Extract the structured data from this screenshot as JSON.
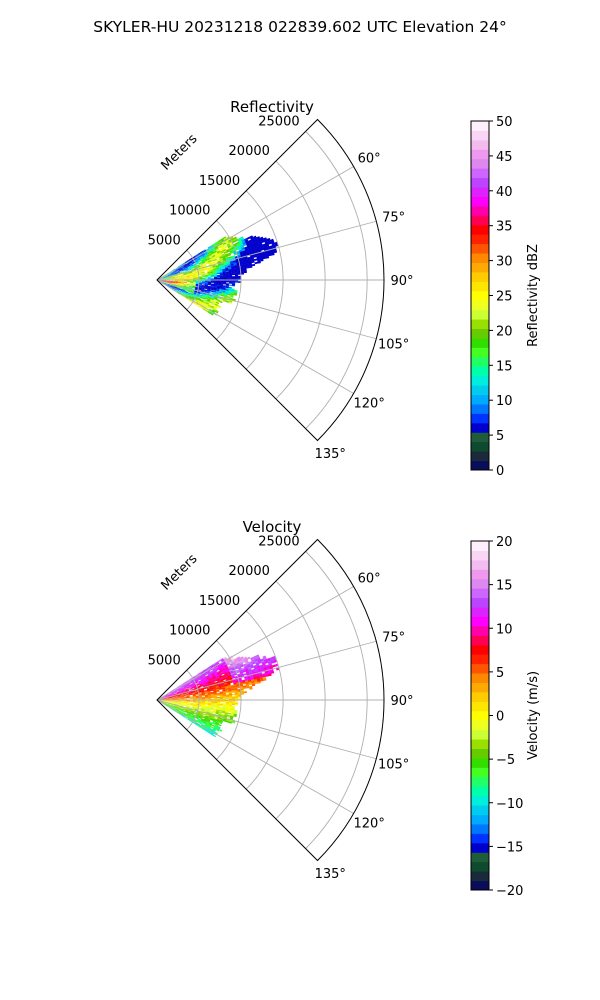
{
  "figure": {
    "suptitle": "SKYLER-HU  20231218  022839.602 UTC Elevation 24°"
  },
  "chart_data": [
    {
      "type": "polar",
      "title": "Reflectivity",
      "radial_label": "Meters",
      "radial_ticks": [
        5000,
        10000,
        15000,
        20000,
        25000
      ],
      "radial_tick_labels": [
        "5000",
        "10000",
        "15000",
        "20000",
        "25000"
      ],
      "r_max": 27000,
      "theta_range_deg": [
        45,
        135
      ],
      "theta_ticks_deg": [
        60,
        75,
        90,
        105,
        120,
        135
      ],
      "theta_tick_labels": [
        "60°",
        "75°",
        "90°",
        "105°",
        "120°",
        "135°"
      ],
      "grid": true,
      "colorbar": {
        "label": "Reflectivity dBZ",
        "vmin": 0,
        "vmax": 50,
        "ticks": [
          0,
          5,
          10,
          15,
          20,
          25,
          30,
          35,
          40,
          45,
          50
        ],
        "tick_labels": [
          "0",
          "5",
          "10",
          "15",
          "20",
          "25",
          "30",
          "35",
          "40",
          "45",
          "50"
        ],
        "colors": [
          "#0a0e5a",
          "#1a2a3a",
          "#0d4a2e",
          "#1f5c3a",
          "#0000cc",
          "#0033ff",
          "#0077ff",
          "#00aaff",
          "#00ccee",
          "#00eedd",
          "#00ffaa",
          "#22ff66",
          "#44ff22",
          "#33dd00",
          "#66cc00",
          "#99e000",
          "#ccff33",
          "#eeff22",
          "#ffff00",
          "#ffe600",
          "#ffcc00",
          "#ffaa00",
          "#ff8800",
          "#ff5500",
          "#ff2200",
          "#ff0000",
          "#ff0055",
          "#ff00aa",
          "#ff00ff",
          "#dd22ff",
          "#bb44ff",
          "#cc66ff",
          "#dd88ee",
          "#ee99ee",
          "#f4bbf0",
          "#fad6f6",
          "#fdf0fc"
        ]
      },
      "echo_region": {
        "range_m": [
          0,
          15000
        ],
        "azimuth_deg": [
          58,
          122
        ],
        "description_values": "mostly 10-30 dBZ with cores near 35"
      }
    },
    {
      "type": "polar",
      "title": "Velocity",
      "radial_label": "Meters",
      "radial_ticks": [
        5000,
        10000,
        15000,
        20000,
        25000
      ],
      "radial_tick_labels": [
        "5000",
        "10000",
        "15000",
        "20000",
        "25000"
      ],
      "r_max": 27000,
      "theta_range_deg": [
        45,
        135
      ],
      "theta_ticks_deg": [
        60,
        75,
        90,
        105,
        120,
        135
      ],
      "theta_tick_labels": [
        "60°",
        "75°",
        "90°",
        "105°",
        "120°",
        "135°"
      ],
      "grid": true,
      "colorbar": {
        "label": "Velocity (m/s)",
        "vmin": -20,
        "vmax": 20,
        "ticks": [
          -20,
          -15,
          -10,
          -5,
          0,
          5,
          10,
          15,
          20
        ],
        "tick_labels": [
          "−20",
          "−15",
          "−10",
          "−5",
          "0",
          "5",
          "10",
          "15",
          "20"
        ],
        "colors": [
          "#0a0e5a",
          "#1a2a3a",
          "#0d4a2e",
          "#1f5c3a",
          "#0000cc",
          "#0033ff",
          "#0077ff",
          "#00aaff",
          "#00ccee",
          "#00eedd",
          "#00ffaa",
          "#22ff66",
          "#44ff22",
          "#33dd00",
          "#66cc00",
          "#99e000",
          "#ccff33",
          "#eeff22",
          "#ffff00",
          "#ffe600",
          "#ffcc00",
          "#ffaa00",
          "#ff8800",
          "#ff5500",
          "#ff2200",
          "#ff0000",
          "#ff0055",
          "#ff00aa",
          "#ff00ff",
          "#dd22ff",
          "#bb44ff",
          "#cc66ff",
          "#dd88ee",
          "#ee99ee",
          "#f4bbf0",
          "#fad6f6",
          "#fdf0fc"
        ]
      },
      "echo_region": {
        "range_m": [
          0,
          15000
        ],
        "azimuth_deg": [
          58,
          122
        ],
        "description_values": "outbound +5 to +15 north, inbound -5 to -15 south"
      }
    }
  ]
}
